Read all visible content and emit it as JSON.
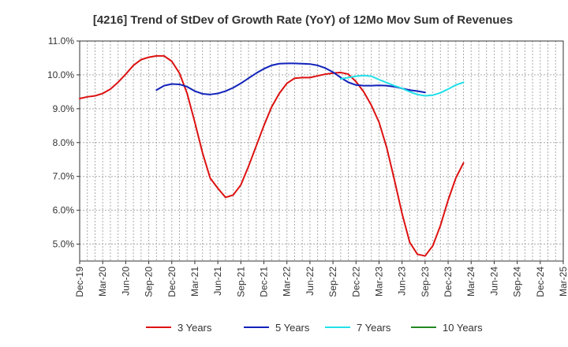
{
  "chart_data": {
    "type": "line",
    "title": "[4216]  Trend of StDev of Growth Rate (YoY) of 12Mo Mov Sum of Revenues",
    "xlabel": "",
    "ylabel": "",
    "ylim": [
      4.5,
      11.0
    ],
    "y_ticks": [
      5.0,
      6.0,
      7.0,
      8.0,
      9.0,
      10.0,
      11.0
    ],
    "y_tick_labels": [
      "5.0%",
      "6.0%",
      "7.0%",
      "8.0%",
      "9.0%",
      "10.0%",
      "11.0%"
    ],
    "x_start": "Dec-19",
    "x_tick_labels": [
      "Dec-19",
      "Mar-20",
      "Jun-20",
      "Sep-20",
      "Dec-20",
      "Mar-21",
      "Jun-21",
      "Sep-21",
      "Dec-21",
      "Mar-22",
      "Jun-22",
      "Sep-22",
      "Dec-22",
      "Mar-23",
      "Jun-23",
      "Sep-23",
      "Dec-23",
      "Mar-24",
      "Jun-24",
      "Sep-24",
      "Dec-24",
      "Mar-25"
    ],
    "grid": true,
    "legend_position": "bottom",
    "series": [
      {
        "name": "3 Years",
        "color": "#dd1111",
        "start_index": 0,
        "values": [
          9.3,
          9.35,
          9.38,
          9.45,
          9.58,
          9.78,
          10.02,
          10.28,
          10.45,
          10.52,
          10.56,
          10.56,
          10.4,
          10.05,
          9.45,
          8.6,
          7.7,
          6.95,
          6.65,
          6.38,
          6.45,
          6.75,
          7.3,
          7.9,
          8.5,
          9.05,
          9.45,
          9.75,
          9.9,
          9.92,
          9.92,
          9.97,
          10.02,
          10.05,
          10.07,
          10.02,
          9.8,
          9.5,
          9.1,
          8.6,
          7.85,
          6.9,
          5.9,
          5.05,
          4.7,
          4.65,
          4.95,
          5.55,
          6.3,
          6.95,
          7.4
        ]
      },
      {
        "name": "5 Years",
        "color": "#1122bb",
        "start_index": 10,
        "values": [
          9.55,
          9.68,
          9.73,
          9.72,
          9.65,
          9.52,
          9.44,
          9.42,
          9.45,
          9.52,
          9.62,
          9.75,
          9.9,
          10.05,
          10.18,
          10.28,
          10.33,
          10.34,
          10.34,
          10.33,
          10.32,
          10.28,
          10.2,
          10.08,
          9.92,
          9.78,
          9.7,
          9.68,
          9.68,
          9.69,
          9.68,
          9.65,
          9.6,
          9.55,
          9.52,
          9.48
        ]
      },
      {
        "name": "7 Years",
        "color": "#22e0e8",
        "start_index": 34,
        "values": [
          9.88,
          9.92,
          9.96,
          9.98,
          9.96,
          9.86,
          9.77,
          9.68,
          9.6,
          9.5,
          9.42,
          9.38,
          9.4,
          9.47,
          9.58,
          9.7,
          9.78
        ]
      },
      {
        "name": "10 Years",
        "color": "#228822",
        "start_index": 0,
        "values": []
      }
    ]
  }
}
